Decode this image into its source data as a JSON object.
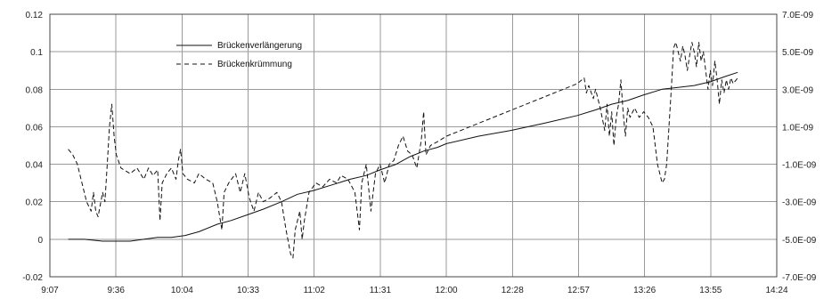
{
  "chart_data": {
    "type": "line",
    "grid": true,
    "legend_position": "top-left",
    "x_axis": {
      "range": [
        "9:07",
        "14:24"
      ],
      "tick_labels": [
        "9:07",
        "9:36",
        "10:04",
        "10:33",
        "11:02",
        "11:31",
        "12:00",
        "12:28",
        "12:57",
        "13:26",
        "13:55",
        "14:24"
      ]
    },
    "y_left": {
      "range": [
        -0.02,
        0.12
      ],
      "tick_labels": [
        "0.12",
        "0.1",
        "0.08",
        "0.06",
        "0.04",
        "0.02",
        "0",
        "-0.02"
      ]
    },
    "y_right": {
      "range": [
        -7e-09,
        7e-09
      ],
      "tick_labels": [
        "7.0E-09",
        "5.0E-09",
        "3.0E-09",
        "1.0E-09",
        "-1.0E-09",
        "-3.0E-09",
        "-5.0E-09",
        "-7.0E-09"
      ]
    },
    "series": [
      {
        "name": "Brückenverlängerung",
        "axis": "left",
        "style": "solid",
        "points": [
          [
            "9:15",
            0.0
          ],
          [
            "9:22",
            0.0
          ],
          [
            "9:30",
            -0.001
          ],
          [
            "9:36",
            -0.001
          ],
          [
            "9:42",
            -0.001
          ],
          [
            "9:48",
            0.0
          ],
          [
            "9:54",
            0.001
          ],
          [
            "10:00",
            0.001
          ],
          [
            "10:06",
            0.002
          ],
          [
            "10:12",
            0.004
          ],
          [
            "10:20",
            0.008
          ],
          [
            "10:26",
            0.01
          ],
          [
            "10:33",
            0.013
          ],
          [
            "10:40",
            0.016
          ],
          [
            "10:48",
            0.02
          ],
          [
            "10:55",
            0.024
          ],
          [
            "11:02",
            0.026
          ],
          [
            "11:10",
            0.029
          ],
          [
            "11:18",
            0.032
          ],
          [
            "11:25",
            0.034
          ],
          [
            "11:31",
            0.037
          ],
          [
            "11:38",
            0.04
          ],
          [
            "11:44",
            0.044
          ],
          [
            "11:50",
            0.047
          ],
          [
            "11:56",
            0.049
          ],
          [
            "12:00",
            0.051
          ],
          [
            "12:14",
            0.055
          ],
          [
            "12:28",
            0.058
          ],
          [
            "12:43",
            0.062
          ],
          [
            "12:57",
            0.066
          ],
          [
            "13:05",
            0.069
          ],
          [
            "13:12",
            0.072
          ],
          [
            "13:19",
            0.074
          ],
          [
            "13:26",
            0.077
          ],
          [
            "13:34",
            0.08
          ],
          [
            "13:41",
            0.081
          ],
          [
            "13:48",
            0.082
          ],
          [
            "13:55",
            0.084
          ],
          [
            "14:02",
            0.087
          ],
          [
            "14:07",
            0.089
          ]
        ]
      },
      {
        "name": "Brückenkrümmung",
        "axis": "right",
        "style": "dashed",
        "points": [
          [
            "9:15",
            -2e-10
          ],
          [
            "9:17",
            -5e-10
          ],
          [
            "9:19",
            -1e-09
          ],
          [
            "9:21",
            -2e-09
          ],
          [
            "9:23",
            -3e-09
          ],
          [
            "9:25",
            -3.5e-09
          ],
          [
            "9:26",
            -2.5e-09
          ],
          [
            "9:27",
            -3.5e-09
          ],
          [
            "9:28",
            -3.8e-09
          ],
          [
            "9:30",
            -2.5e-09
          ],
          [
            "9:31",
            -3e-09
          ],
          [
            "9:32",
            -1e-09
          ],
          [
            "9:33",
            1e-09
          ],
          [
            "9:34",
            2.2e-09
          ],
          [
            "9:35",
            5e-10
          ],
          [
            "9:36",
            -5e-10
          ],
          [
            "9:38",
            -1.2e-09
          ],
          [
            "9:42",
            -1.5e-09
          ],
          [
            "9:45",
            -1.2e-09
          ],
          [
            "9:48",
            -1.8e-09
          ],
          [
            "9:50",
            -1.2e-09
          ],
          [
            "9:52",
            -1.6e-09
          ],
          [
            "9:54",
            -1.3e-09
          ],
          [
            "9:55",
            -4e-09
          ],
          [
            "9:56",
            -2e-09
          ],
          [
            "9:58",
            -1.5e-09
          ],
          [
            "10:00",
            -1.2e-09
          ],
          [
            "10:02",
            -1.8e-09
          ],
          [
            "10:03",
            -8e-10
          ],
          [
            "10:04",
            -2e-10
          ],
          [
            "10:05",
            -1.5e-09
          ],
          [
            "10:07",
            -1.8e-09
          ],
          [
            "10:10",
            -2e-09
          ],
          [
            "10:12",
            -1.5e-09
          ],
          [
            "10:15",
            -1.8e-09
          ],
          [
            "10:18",
            -2e-09
          ],
          [
            "10:20",
            -3e-09
          ],
          [
            "10:22",
            -4.5e-09
          ],
          [
            "10:23",
            -2.5e-09
          ],
          [
            "10:25",
            -2e-09
          ],
          [
            "10:28",
            -1.5e-09
          ],
          [
            "10:30",
            -2.5e-09
          ],
          [
            "10:32",
            -1.5e-09
          ],
          [
            "10:34",
            -2.8e-09
          ],
          [
            "10:36",
            -3.5e-09
          ],
          [
            "10:38",
            -2.5e-09
          ],
          [
            "10:40",
            -3e-09
          ],
          [
            "10:43",
            -2.8e-09
          ],
          [
            "10:46",
            -2.5e-09
          ],
          [
            "10:48",
            -3e-09
          ],
          [
            "10:50",
            -4.5e-09
          ],
          [
            "10:52",
            -5.8e-09
          ],
          [
            "10:53",
            -6e-09
          ],
          [
            "10:54",
            -4.5e-09
          ],
          [
            "10:56",
            -3.5e-09
          ],
          [
            "10:57",
            -5e-09
          ],
          [
            "10:58",
            -4e-09
          ],
          [
            "11:00",
            -2.5e-09
          ],
          [
            "11:03",
            -2e-09
          ],
          [
            "11:06",
            -2.2e-09
          ],
          [
            "11:09",
            -1.8e-09
          ],
          [
            "11:12",
            -2e-09
          ],
          [
            "11:14",
            -1.6e-09
          ],
          [
            "11:17",
            -1.8e-09
          ],
          [
            "11:20",
            -2.5e-09
          ],
          [
            "11:22",
            -4.5e-09
          ],
          [
            "11:23",
            -2e-09
          ],
          [
            "11:25",
            -1e-09
          ],
          [
            "11:27",
            -3.5e-09
          ],
          [
            "11:29",
            -1.5e-09
          ],
          [
            "11:31",
            -1e-09
          ],
          [
            "11:33",
            -2e-09
          ],
          [
            "11:35",
            -1e-09
          ],
          [
            "11:37",
            -8e-10
          ],
          [
            "11:39",
            0.0
          ],
          [
            "11:41",
            5e-10
          ],
          [
            "11:43",
            -3e-10
          ],
          [
            "11:45",
            -5e-10
          ],
          [
            "11:47",
            -1.2e-09
          ],
          [
            "11:49",
            3e-10
          ],
          [
            "11:50",
            1.8e-09
          ],
          [
            "11:51",
            -5e-10
          ],
          [
            "11:53",
            0.0
          ],
          [
            "11:56",
            2e-10
          ],
          [
            "12:00",
            5e-10
          ],
          [
            "12:57",
            3.3e-09
          ],
          [
            "13:00",
            3.6e-09
          ],
          [
            "13:01",
            2.8e-09
          ],
          [
            "13:02",
            3.2e-09
          ],
          [
            "13:04",
            2.5e-09
          ],
          [
            "13:05",
            3e-09
          ],
          [
            "13:07",
            2e-09
          ],
          [
            "13:09",
            8e-10
          ],
          [
            "13:10",
            2.2e-09
          ],
          [
            "13:11",
            5e-10
          ],
          [
            "13:12",
            1.8e-09
          ],
          [
            "13:13",
            0.0
          ],
          [
            "13:14",
            1.5e-09
          ],
          [
            "13:15",
            2.2e-09
          ],
          [
            "13:16",
            3.5e-09
          ],
          [
            "13:17",
            1.8e-09
          ],
          [
            "13:18",
            5e-10
          ],
          [
            "13:19",
            2e-09
          ],
          [
            "13:20",
            1.5e-09
          ],
          [
            "13:22",
            2e-09
          ],
          [
            "13:24",
            1.5e-09
          ],
          [
            "13:26",
            1.8e-09
          ],
          [
            "13:28",
            1.5e-09
          ],
          [
            "13:30",
            1e-09
          ],
          [
            "13:32",
            -1e-09
          ],
          [
            "13:33",
            -1.5e-09
          ],
          [
            "13:34",
            -2e-09
          ],
          [
            "13:35",
            -1.8e-09
          ],
          [
            "13:36",
            -1e-09
          ],
          [
            "13:38",
            3e-09
          ],
          [
            "13:39",
            5.2e-09
          ],
          [
            "13:40",
            5.5e-09
          ],
          [
            "13:41",
            5e-09
          ],
          [
            "13:42",
            4.5e-09
          ],
          [
            "13:43",
            5.3e-09
          ],
          [
            "13:44",
            4.8e-09
          ],
          [
            "13:45",
            4e-09
          ],
          [
            "13:46",
            4.8e-09
          ],
          [
            "13:47",
            5.5e-09
          ],
          [
            "13:48",
            5e-09
          ],
          [
            "13:49",
            4.2e-09
          ],
          [
            "13:50",
            5.5e-09
          ],
          [
            "13:51",
            4.5e-09
          ],
          [
            "13:52",
            5e-09
          ],
          [
            "13:53",
            4e-09
          ],
          [
            "13:54",
            3e-09
          ],
          [
            "13:55",
            4e-09
          ],
          [
            "13:56",
            3.2e-09
          ],
          [
            "13:57",
            4.5e-09
          ],
          [
            "13:58",
            3.5e-09
          ],
          [
            "13:59",
            2.2e-09
          ],
          [
            "14:00",
            3.5e-09
          ],
          [
            "14:01",
            2.8e-09
          ],
          [
            "14:02",
            3.5e-09
          ],
          [
            "14:03",
            3e-09
          ],
          [
            "14:04",
            3.6e-09
          ],
          [
            "14:05",
            3.3e-09
          ],
          [
            "14:07",
            3.6e-09
          ]
        ]
      }
    ]
  }
}
